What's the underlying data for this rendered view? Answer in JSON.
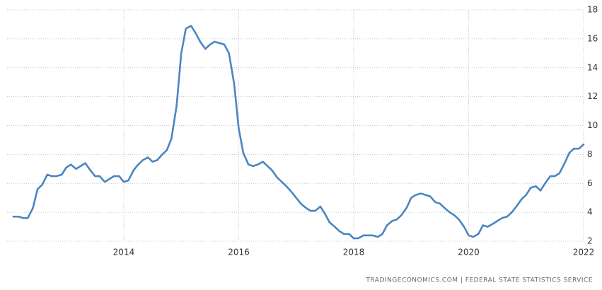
{
  "chart_data": {
    "type": "line",
    "source": "TRADINGECONOMICS.COM  |  FEDERAL STATE STATISTICS SERVICE",
    "x": [
      2012.08,
      2012.17,
      2012.25,
      2012.33,
      2012.42,
      2012.5,
      2012.58,
      2012.67,
      2012.75,
      2012.83,
      2012.92,
      2013,
      2013.08,
      2013.17,
      2013.25,
      2013.33,
      2013.42,
      2013.5,
      2013.58,
      2013.67,
      2013.75,
      2013.83,
      2013.92,
      2014,
      2014.08,
      2014.17,
      2014.25,
      2014.33,
      2014.42,
      2014.5,
      2014.58,
      2014.67,
      2014.75,
      2014.83,
      2014.92,
      2015,
      2015.08,
      2015.17,
      2015.25,
      2015.33,
      2015.42,
      2015.5,
      2015.58,
      2015.67,
      2015.75,
      2015.83,
      2015.92,
      2016,
      2016.08,
      2016.17,
      2016.25,
      2016.33,
      2016.42,
      2016.5,
      2016.58,
      2016.67,
      2016.75,
      2016.83,
      2016.92,
      2017,
      2017.08,
      2017.17,
      2017.25,
      2017.33,
      2017.42,
      2017.5,
      2017.58,
      2017.67,
      2017.75,
      2017.83,
      2017.92,
      2018,
      2018.08,
      2018.17,
      2018.25,
      2018.33,
      2018.42,
      2018.5,
      2018.58,
      2018.67,
      2018.75,
      2018.83,
      2018.92,
      2019,
      2019.08,
      2019.17,
      2019.25,
      2019.33,
      2019.42,
      2019.5,
      2019.58,
      2019.67,
      2019.75,
      2019.83,
      2019.92,
      2020,
      2020.08,
      2020.17,
      2020.25,
      2020.33,
      2020.42,
      2020.5,
      2020.58,
      2020.67,
      2020.75,
      2020.83,
      2020.92,
      2021,
      2021.08,
      2021.17,
      2021.25,
      2021.33,
      2021.42,
      2021.5,
      2021.58,
      2021.67,
      2021.75,
      2021.83,
      2021.92,
      2022
    ],
    "series": [
      {
        "color": "#4a86c0",
        "values": [
          3.7,
          3.7,
          3.6,
          3.6,
          4.3,
          5.6,
          5.9,
          6.6,
          6.5,
          6.5,
          6.6,
          7.1,
          7.3,
          7.0,
          7.2,
          7.4,
          6.9,
          6.5,
          6.5,
          6.1,
          6.3,
          6.5,
          6.5,
          6.1,
          6.2,
          6.9,
          7.3,
          7.6,
          7.8,
          7.5,
          7.6,
          8.0,
          8.3,
          9.1,
          11.4,
          15.0,
          16.7,
          16.9,
          16.4,
          15.8,
          15.3,
          15.6,
          15.8,
          15.7,
          15.6,
          15.0,
          12.9,
          9.8,
          8.1,
          7.3,
          7.2,
          7.3,
          7.5,
          7.2,
          6.9,
          6.4,
          6.1,
          5.8,
          5.4,
          5.0,
          4.6,
          4.3,
          4.1,
          4.1,
          4.4,
          3.9,
          3.3,
          3.0,
          2.7,
          2.5,
          2.5,
          2.2,
          2.2,
          2.4,
          2.4,
          2.4,
          2.3,
          2.5,
          3.1,
          3.4,
          3.5,
          3.8,
          4.3,
          5.0,
          5.2,
          5.3,
          5.2,
          5.1,
          4.7,
          4.6,
          4.3,
          4.0,
          3.8,
          3.5,
          3.0,
          2.4,
          2.3,
          2.5,
          3.1,
          3.0,
          3.2,
          3.4,
          3.6,
          3.7,
          4.0,
          4.4,
          4.9,
          5.2,
          5.7,
          5.8,
          5.5,
          6.0,
          6.5,
          6.5,
          6.7,
          7.4,
          8.1,
          8.4,
          8.4,
          8.7
        ]
      }
    ],
    "xlim": [
      2011.97,
      2022
    ],
    "xticks": [
      2014,
      2016,
      2018,
      2020,
      2022
    ],
    "ylim": [
      2,
      18
    ],
    "yticks": [
      2,
      4,
      6,
      8,
      10,
      12,
      14,
      16,
      18
    ],
    "grid": true
  }
}
